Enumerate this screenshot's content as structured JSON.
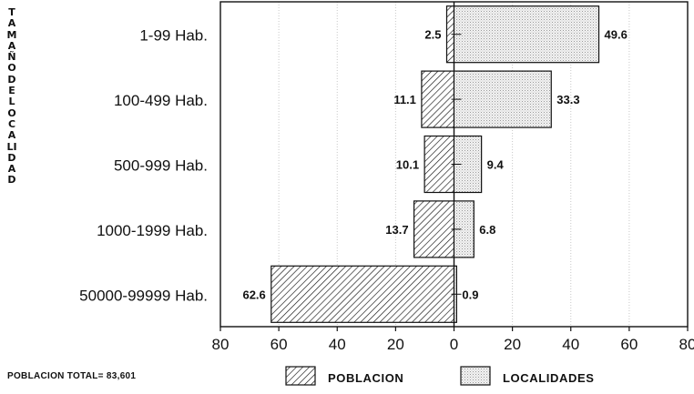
{
  "vertical_title": "TAMAÑO DE LOCALIDAD",
  "footnote": "POBLACION TOTAL= 83,601",
  "chart_data": {
    "type": "bar",
    "orientation": "horizontal",
    "diverging": true,
    "categories": [
      "1-99 Hab.",
      "100-499 Hab.",
      "500-999 Hab.",
      "1000-1999 Hab.",
      "50000-99999 Hab."
    ],
    "series": [
      {
        "name": "POBLACION",
        "side": "left",
        "values": [
          2.5,
          11.1,
          10.1,
          13.7,
          62.6
        ]
      },
      {
        "name": "LOCALIDADES",
        "side": "right",
        "values": [
          49.6,
          33.3,
          9.4,
          6.8,
          0.9
        ]
      }
    ],
    "x_ticks": [
      "80",
      "60",
      "40",
      "20",
      "0",
      "20",
      "40",
      "60",
      "80"
    ],
    "xlim": [
      -80,
      80
    ],
    "grid": "vertical",
    "legend": "bottom"
  }
}
